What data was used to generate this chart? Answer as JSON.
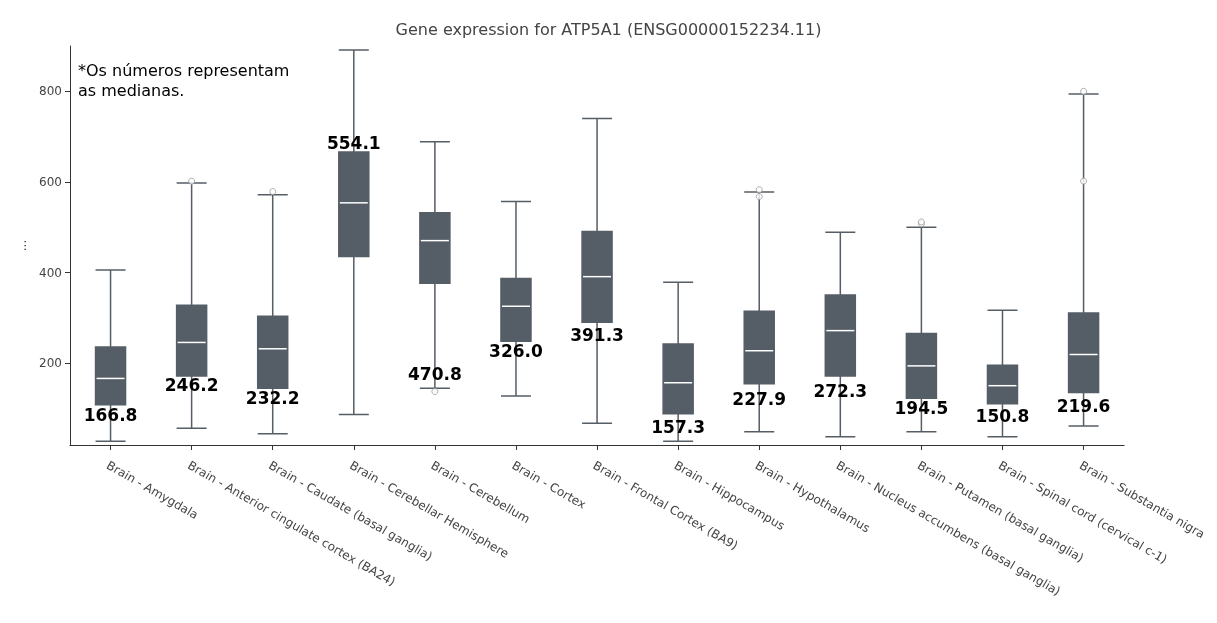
{
  "chart_data": {
    "type": "box",
    "title": "Gene expression for ATP5A1 (ENSG00000152234.11)",
    "ylabel": "...",
    "categories": [
      "Brain - Amygdala",
      "Brain - Anterior cingulate cortex (BA24)",
      "Brain - Caudate (basal ganglia)",
      "Brain - Cerebellar Hemisphere",
      "Brain - Cerebellum",
      "Brain - Cortex",
      "Brain - Frontal Cortex (BA9)",
      "Brain - Hippocampus",
      "Brain - Hypothalamus",
      "Brain - Nucleus accumbens (basal ganglia)",
      "Brain - Putamen (basal ganglia)",
      "Brain - Spinal cord (cervical c-1)",
      "Brain - Substantia nigra"
    ],
    "ylim": [
      20,
      900
    ],
    "yticks": [
      200,
      400,
      600,
      800
    ],
    "grid": false,
    "annotations": [
      "*Os números representam\nas medianas.",
      {
        "text": "166.8",
        "x": "Brain - Amygdala",
        "y": 87
      },
      {
        "text": "246.2",
        "x": "Brain - Anterior cingulate cortex (BA24)",
        "y": 153
      },
      {
        "text": "232.2",
        "x": "Brain - Caudate (basal ganglia)",
        "y": 123
      },
      {
        "text": "554.1",
        "x": "Brain - Cerebellar Hemisphere",
        "y": 685
      },
      {
        "text": "470.8",
        "x": "Brain - Cerebellum",
        "y": 177
      },
      {
        "text": "326.0",
        "x": "Brain - Cortex",
        "y": 228
      },
      {
        "text": "391.3",
        "x": "Brain - Frontal Cortex (BA9)",
        "y": 262
      },
      {
        "text": "157.3",
        "x": "Brain - Hippocampus",
        "y": 60
      },
      {
        "text": "227.9",
        "x": "Brain - Hypothalamus",
        "y": 121
      },
      {
        "text": "272.3",
        "x": "Brain - Nucleus accumbens (basal ganglia)",
        "y": 138
      },
      {
        "text": "194.5",
        "x": "Brain - Putamen (basal ganglia)",
        "y": 102
      },
      {
        "text": "150.8",
        "x": "Brain - Spinal cord (cervical c-1)",
        "y": 83
      },
      {
        "text": "219.6",
        "x": "Brain - Substantia nigra",
        "y": 106
      }
    ],
    "series": [
      {
        "color": "#555e66",
        "boxes": [
          {
            "low": 28,
            "q1": 109,
            "median": 166.8,
            "q3": 236,
            "high": 406
          },
          {
            "low": 57,
            "q1": 172,
            "median": 246.2,
            "q3": 328,
            "high": 598,
            "outliers": [
              602
            ]
          },
          {
            "low": 45,
            "q1": 145,
            "median": 232.2,
            "q3": 304,
            "high": 572,
            "outliers": [
              579
            ]
          },
          {
            "low": 87,
            "q1": 436,
            "median": 554.1,
            "q3": 666,
            "high": 891
          },
          {
            "low": 145,
            "q1": 377,
            "median": 470.8,
            "q3": 532,
            "high": 689,
            "outliers": [
              138
            ]
          },
          {
            "low": 128,
            "q1": 249,
            "median": 326.0,
            "q3": 387,
            "high": 557
          },
          {
            "low": 68,
            "q1": 291,
            "median": 391.3,
            "q3": 491,
            "high": 740
          },
          {
            "low": 28,
            "q1": 89,
            "median": 157.3,
            "q3": 243,
            "high": 379
          },
          {
            "low": 49,
            "q1": 155,
            "median": 227.9,
            "q3": 315,
            "high": 578,
            "outliers": [
              583,
              568
            ]
          },
          {
            "low": 38,
            "q1": 172,
            "median": 272.3,
            "q3": 351,
            "high": 489
          },
          {
            "low": 49,
            "q1": 123,
            "median": 194.5,
            "q3": 266,
            "high": 500,
            "outliers": [
              508,
              512
            ]
          },
          {
            "low": 38,
            "q1": 111,
            "median": 150.8,
            "q3": 196,
            "high": 317
          },
          {
            "low": 62,
            "q1": 136,
            "median": 219.6,
            "q3": 311,
            "high": 794,
            "outliers": [
              800,
              602
            ]
          }
        ]
      }
    ]
  }
}
